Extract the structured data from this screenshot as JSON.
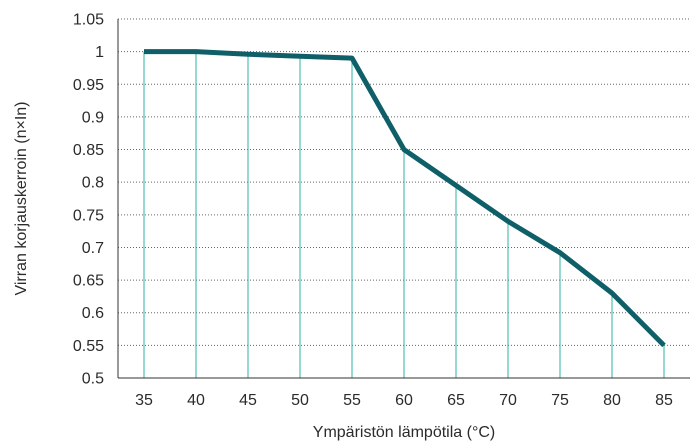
{
  "chart_data": {
    "type": "line",
    "title": "",
    "xlabel": "Ympäristön lämpötila (°C)",
    "ylabel": "Virran korjauskerroin (n×In)",
    "x": [
      35,
      40,
      45,
      50,
      55,
      60,
      65,
      70,
      75,
      80,
      85
    ],
    "series": [
      {
        "values": [
          1.0,
          1.0,
          0.996,
          0.993,
          0.99,
          0.85,
          0.795,
          0.74,
          0.692,
          0.63,
          0.55
        ]
      }
    ],
    "xlim": [
      32.5,
      87.5
    ],
    "ylim": [
      0.5,
      1.05
    ],
    "x_ticks": [
      "35",
      "40",
      "45",
      "50",
      "55",
      "60",
      "65",
      "70",
      "75",
      "80",
      "85"
    ],
    "y_ticks": [
      "0.5",
      "0.55",
      "0.6",
      "0.65",
      "0.7",
      "0.75",
      "0.8",
      "0.85",
      "0.9",
      "0.95",
      "1",
      "1.05"
    ],
    "grid": "horizontal dotted",
    "drop_lines": true,
    "colors": {
      "line": "#0e5f67",
      "drop_lines": "#2bb3a2",
      "grid": "#666666",
      "axis": "#333333"
    }
  }
}
